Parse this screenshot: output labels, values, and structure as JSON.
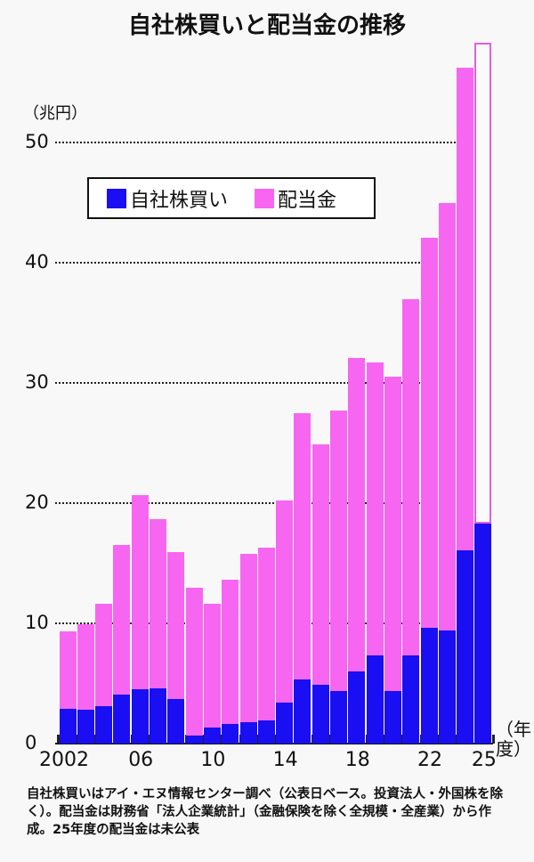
{
  "title": "自社株買いと配当金の推移",
  "unit_label": "（兆円）",
  "legend": {
    "buyback": {
      "label": "自社株買い",
      "color": "#1a0ef2"
    },
    "dividend": {
      "label": "配当金",
      "color": "#f766f1"
    }
  },
  "x_axis": {
    "tick_labels": [
      "2002",
      "06",
      "10",
      "14",
      "18",
      "22",
      "25"
    ],
    "unit_label": "（年度）"
  },
  "y_axis": {
    "tick_labels": [
      "0",
      "10",
      "20",
      "30",
      "40",
      "50"
    ]
  },
  "footnote": "自社株買いはアイ・エヌ情報センター調べ（公表日ベース。投資法人・外国株を除く）。配当金は財務省「法人企業統計」（金融保険を除く全規模・全産業）から作成。25年度の配当金は未公表",
  "chart_data": {
    "type": "bar",
    "stacked": true,
    "title": "自社株買いと配当金の推移",
    "xlabel": "年度",
    "ylabel": "兆円",
    "ylim": [
      0,
      58
    ],
    "yticks": [
      0,
      10,
      20,
      30,
      40,
      50
    ],
    "grid": "horizontal dotted",
    "legend_position": "upper left (inside)",
    "categories": [
      "2002",
      "2003",
      "2004",
      "2005",
      "2006",
      "2007",
      "2008",
      "2009",
      "2010",
      "2011",
      "2012",
      "2013",
      "2014",
      "2015",
      "2016",
      "2017",
      "2018",
      "2019",
      "2020",
      "2021",
      "2022",
      "2023",
      "2024",
      "2025"
    ],
    "series": [
      {
        "name": "自社株買い",
        "color": "#1a0ef2",
        "values": [
          2.9,
          2.8,
          3.1,
          4.1,
          4.5,
          4.6,
          3.7,
          0.7,
          1.3,
          1.6,
          1.8,
          1.9,
          3.4,
          5.3,
          4.9,
          4.4,
          6.0,
          7.3,
          4.4,
          7.3,
          9.6,
          9.4,
          16.1,
          18.3
        ]
      },
      {
        "name": "配当金",
        "color": "#f766f1",
        "values": [
          6.4,
          7.1,
          8.5,
          12.4,
          16.2,
          14.1,
          12.2,
          12.3,
          10.3,
          12.0,
          14.0,
          14.4,
          16.8,
          22.2,
          20.0,
          23.3,
          26.1,
          24.4,
          26.1,
          29.7,
          32.5,
          35.6,
          40.1,
          null
        ]
      }
    ],
    "totals": [
      9.3,
      9.9,
      11.6,
      16.5,
      20.7,
      18.7,
      15.9,
      13.0,
      11.6,
      13.6,
      15.8,
      16.3,
      20.2,
      27.5,
      24.9,
      27.7,
      32.1,
      31.7,
      30.5,
      37.0,
      42.1,
      45.0,
      56.2,
      58.3
    ],
    "annotations": [
      "2025年度の配当金は未公表（白抜き枠で表示）"
    ]
  }
}
